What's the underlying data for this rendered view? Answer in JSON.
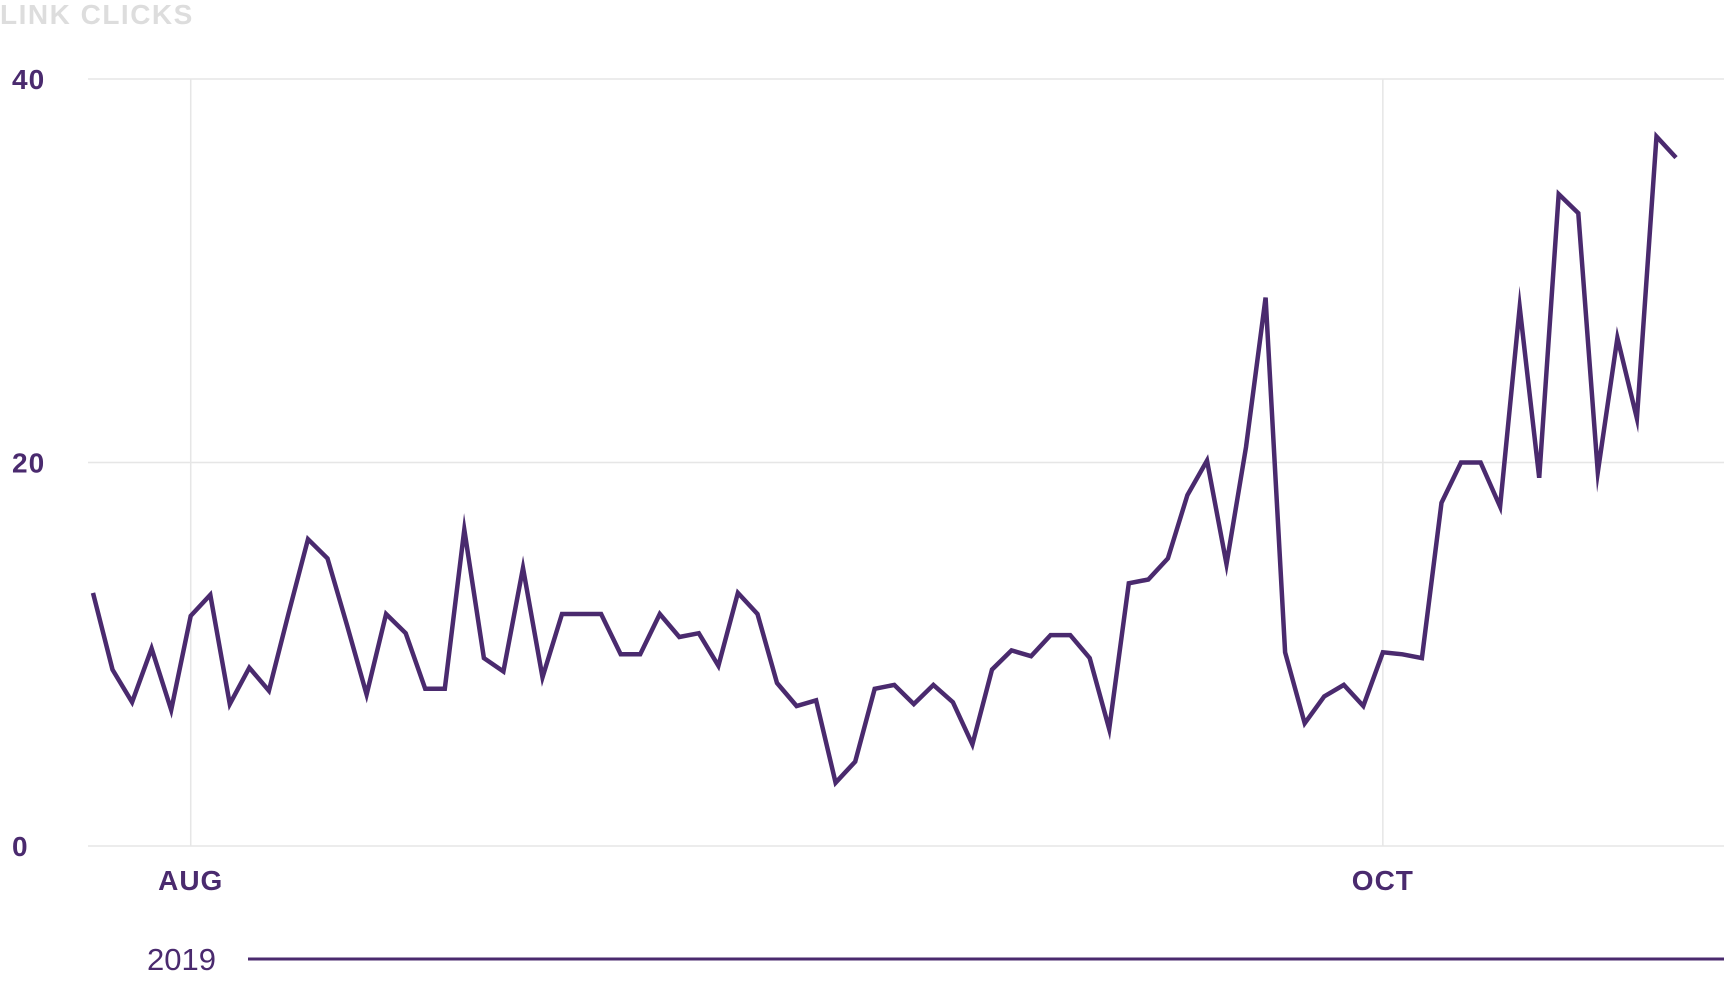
{
  "colors": {
    "series": "#4a2a6e",
    "axis_text": "#4a2a6e",
    "title_text": "#dddddd",
    "grid": "#e6e6e6",
    "background": "#ffffff"
  },
  "chart_data": {
    "type": "line",
    "title": "LINK CLICKS",
    "xlabel": "",
    "ylabel": "",
    "ylim": [
      0,
      40
    ],
    "y_ticks": [
      "0",
      "20",
      "40"
    ],
    "x_ticks": [
      {
        "date": "2019-08-01",
        "label": "AUG"
      },
      {
        "date": "2019-10-01",
        "label": "OCT"
      }
    ],
    "x_range": [
      "2019-07-27",
      "2019-10-16"
    ],
    "year_label": "2019",
    "grid": true,
    "series": [
      {
        "dates": [
          "2019-07-27",
          "2019-07-28",
          "2019-07-29",
          "2019-07-30",
          "2019-07-31",
          "2019-08-01",
          "2019-08-02",
          "2019-08-03",
          "2019-08-04",
          "2019-08-05",
          "2019-08-06",
          "2019-08-07",
          "2019-08-08",
          "2019-08-09",
          "2019-08-10",
          "2019-08-11",
          "2019-08-12",
          "2019-08-13",
          "2019-08-14",
          "2019-08-15",
          "2019-08-16",
          "2019-08-17",
          "2019-08-18",
          "2019-08-19",
          "2019-08-20",
          "2019-08-21",
          "2019-08-22",
          "2019-08-23",
          "2019-08-24",
          "2019-08-25",
          "2019-08-26",
          "2019-08-27",
          "2019-08-28",
          "2019-08-29",
          "2019-08-30",
          "2019-08-31",
          "2019-09-01",
          "2019-09-02",
          "2019-09-03",
          "2019-09-04",
          "2019-09-05",
          "2019-09-06",
          "2019-09-07",
          "2019-09-08",
          "2019-09-09",
          "2019-09-10",
          "2019-09-11",
          "2019-09-12",
          "2019-09-13",
          "2019-09-14",
          "2019-09-15",
          "2019-09-16",
          "2019-09-17",
          "2019-09-18",
          "2019-09-19",
          "2019-09-20",
          "2019-09-21",
          "2019-09-22",
          "2019-09-23",
          "2019-09-24",
          "2019-09-25",
          "2019-09-26",
          "2019-09-27",
          "2019-09-28",
          "2019-09-29",
          "2019-09-30",
          "2019-10-01",
          "2019-10-02",
          "2019-10-03",
          "2019-10-04",
          "2019-10-05",
          "2019-10-06",
          "2019-10-07",
          "2019-10-08",
          "2019-10-09",
          "2019-10-10",
          "2019-10-11",
          "2019-10-12",
          "2019-10-13",
          "2019-10-14",
          "2019-10-15",
          "2019-10-16"
        ],
        "values": [
          13.2,
          9.2,
          7.5,
          10.3,
          7.1,
          12.0,
          13.1,
          7.4,
          9.3,
          8.1,
          12.1,
          16.0,
          15.0,
          11.5,
          7.9,
          12.1,
          11.1,
          8.2,
          8.2,
          16.5,
          9.8,
          9.1,
          14.5,
          8.8,
          12.1,
          12.1,
          12.1,
          10.0,
          10.0,
          12.1,
          10.9,
          11.1,
          9.4,
          13.2,
          12.1,
          8.5,
          7.3,
          7.6,
          3.3,
          4.4,
          8.2,
          8.4,
          7.4,
          8.4,
          7.5,
          5.3,
          9.2,
          10.2,
          9.9,
          11.0,
          11.0,
          9.8,
          6.1,
          13.7,
          13.9,
          15.0,
          18.3,
          20.1,
          14.7,
          20.8,
          28.6,
          10.1,
          6.4,
          7.8,
          8.4,
          7.3,
          10.1,
          10.0,
          9.8,
          17.9,
          20.0,
          20.0,
          17.7,
          28.1,
          19.2,
          34.0,
          33.0,
          19.5,
          26.5,
          22.3,
          37.0,
          35.9
        ]
      }
    ]
  }
}
